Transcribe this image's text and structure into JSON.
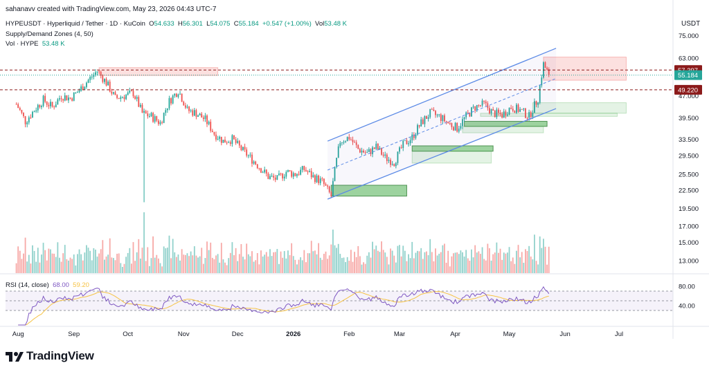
{
  "header": {
    "attribution": "sahanavv created with TradingView.com, May 23, 2026 04:43 UTC-7"
  },
  "symbol_line": {
    "title": "HYPEUSDT · Hyperliquid / Tether · 1D · KuCoin",
    "o_label": "O",
    "o_value": "54.633",
    "h_label": "H",
    "h_value": "56.301",
    "l_label": "L",
    "l_value": "54.075",
    "c_label": "C",
    "c_value": "55.184",
    "chg": "+0.547 (+1.00%)",
    "vol_label": "Vol",
    "vol_value": "53.48 K"
  },
  "indicator_line": "Supply/Demand Zones (4, 50)",
  "volume_line": {
    "label": "Vol · HYPE",
    "value": "53.48 K"
  },
  "rsi_line": {
    "label": "RSI (14, close)",
    "v1": "68.00",
    "v2": "59.20"
  },
  "logo": {
    "text": "TradingView"
  },
  "colors": {
    "up": "#26a69a",
    "down": "#ef5350",
    "channel": "#5b8ae6",
    "level": "#8b1a1a",
    "rsi": "#7e57c2",
    "rsi_ma": "#f6c344"
  },
  "chart_data": {
    "type": "candlestick",
    "currency": "USDT",
    "price_axis": {
      "ticks": [
        "75.000",
        "63.000",
        "57.000",
        "47.000",
        "39.500",
        "33.500",
        "29.500",
        "25.500",
        "22.500",
        "19.500",
        "17.000",
        "15.000",
        "13.000"
      ],
      "ylim": [
        12,
        78
      ],
      "scale": "log"
    },
    "x_axis": {
      "labels": [
        "Aug",
        "Sep",
        "Oct",
        "Nov",
        "Dec",
        "2026",
        "Feb",
        "Mar",
        "Apr",
        "May",
        "Jun",
        "Jul"
      ]
    },
    "price_labels": [
      {
        "value": "57.397",
        "kind": "level"
      },
      {
        "value": "55.184",
        "kind": "last"
      },
      {
        "value": "49.220",
        "kind": "level"
      }
    ],
    "horizontal_levels": [
      57.397,
      49.22
    ],
    "last_price": 55.184,
    "rsi": {
      "ticks": [
        "80.00",
        "40.00"
      ],
      "upper_band": 70,
      "mid": 50,
      "lower_band": 30,
      "last": 68.0,
      "ma_last": 59.2
    },
    "ascending_channel": {
      "upper": [
        [
          "2026-01-20",
          33.0
        ],
        [
          "2026-05-27",
          68.0
        ]
      ],
      "lower": [
        [
          "2026-01-20",
          21.0
        ],
        [
          "2026-05-27",
          42.5
        ]
      ]
    },
    "supply_zones": [
      {
        "from": "2025-09-15",
        "to": "2025-11-20",
        "low": 55.0,
        "high": 58.5
      },
      {
        "from": "2026-05-20",
        "to": "2026-07-05",
        "low": 53.0,
        "high": 63.5
      }
    ],
    "demand_zones": [
      {
        "from": "2026-01-22",
        "to": "2026-03-05",
        "low": 21.5,
        "high": 23.4,
        "strong": true
      },
      {
        "from": "2026-03-08",
        "to": "2026-04-22",
        "low": 30.5,
        "high": 31.8,
        "strong": true
      },
      {
        "from": "2026-03-08",
        "to": "2026-04-21",
        "low": 27.8,
        "high": 30.5,
        "strong": false
      },
      {
        "from": "2026-04-06",
        "to": "2026-05-22",
        "low": 37.0,
        "high": 38.5,
        "strong": true
      },
      {
        "from": "2026-04-05",
        "to": "2026-05-20",
        "low": 35.2,
        "high": 37.0,
        "strong": false
      },
      {
        "from": "2026-05-14",
        "to": "2026-07-05",
        "low": 41.0,
        "high": 44.5,
        "strong": false
      },
      {
        "from": "2026-04-15",
        "to": "2026-06-30",
        "low": 40.0,
        "high": 41.0,
        "strong": false
      }
    ],
    "candles": [
      {
        "d": "2025-07-31",
        "c": 44.0
      },
      {
        "d": "2025-08-05",
        "c": 38.5
      },
      {
        "d": "2025-08-10",
        "c": 42.0
      },
      {
        "d": "2025-08-15",
        "c": 45.5
      },
      {
        "d": "2025-08-20",
        "c": 43.0
      },
      {
        "d": "2025-08-25",
        "c": 47.0
      },
      {
        "d": "2025-08-30",
        "c": 46.0
      },
      {
        "d": "2025-09-04",
        "c": 49.0
      },
      {
        "d": "2025-09-09",
        "c": 53.0
      },
      {
        "d": "2025-09-14",
        "c": 57.0
      },
      {
        "d": "2025-09-19",
        "c": 52.0
      },
      {
        "d": "2025-09-24",
        "c": 46.0
      },
      {
        "d": "2025-09-29",
        "c": 47.0
      },
      {
        "d": "2025-10-04",
        "c": 48.0
      },
      {
        "d": "2025-10-09",
        "c": 41.0
      },
      {
        "d": "2025-10-14",
        "c": 40.0
      },
      {
        "d": "2025-10-19",
        "c": 38.0
      },
      {
        "d": "2025-10-24",
        "c": 45.0
      },
      {
        "d": "2025-10-29",
        "c": 49.0
      },
      {
        "d": "2025-11-03",
        "c": 42.0
      },
      {
        "d": "2025-11-08",
        "c": 41.0
      },
      {
        "d": "2025-11-13",
        "c": 39.0
      },
      {
        "d": "2025-11-18",
        "c": 35.0
      },
      {
        "d": "2025-11-23",
        "c": 33.0
      },
      {
        "d": "2025-11-28",
        "c": 33.5
      },
      {
        "d": "2025-12-03",
        "c": 31.0
      },
      {
        "d": "2025-12-08",
        "c": 29.0
      },
      {
        "d": "2025-12-13",
        "c": 27.0
      },
      {
        "d": "2025-12-18",
        "c": 25.0
      },
      {
        "d": "2025-12-23",
        "c": 24.5
      },
      {
        "d": "2025-12-28",
        "c": 26.0
      },
      {
        "d": "2026-01-02",
        "c": 25.5
      },
      {
        "d": "2026-01-07",
        "c": 26.5
      },
      {
        "d": "2026-01-12",
        "c": 25.0
      },
      {
        "d": "2026-01-17",
        "c": 24.0
      },
      {
        "d": "2026-01-22",
        "c": 21.5
      },
      {
        "d": "2026-01-27",
        "c": 33.0
      },
      {
        "d": "2026-02-01",
        "c": 34.0
      },
      {
        "d": "2026-02-06",
        "c": 31.0
      },
      {
        "d": "2026-02-11",
        "c": 30.0
      },
      {
        "d": "2026-02-16",
        "c": 31.5
      },
      {
        "d": "2026-02-21",
        "c": 29.0
      },
      {
        "d": "2026-02-26",
        "c": 28.0
      },
      {
        "d": "2026-03-03",
        "c": 32.0
      },
      {
        "d": "2026-03-08",
        "c": 34.0
      },
      {
        "d": "2026-03-13",
        "c": 38.0
      },
      {
        "d": "2026-03-18",
        "c": 41.0
      },
      {
        "d": "2026-03-23",
        "c": 40.0
      },
      {
        "d": "2026-03-28",
        "c": 38.0
      },
      {
        "d": "2026-04-02",
        "c": 36.5
      },
      {
        "d": "2026-04-07",
        "c": 40.0
      },
      {
        "d": "2026-04-12",
        "c": 43.0
      },
      {
        "d": "2026-04-17",
        "c": 44.0
      },
      {
        "d": "2026-04-22",
        "c": 41.0
      },
      {
        "d": "2026-04-27",
        "c": 40.5
      },
      {
        "d": "2026-05-02",
        "c": 43.0
      },
      {
        "d": "2026-05-07",
        "c": 42.0
      },
      {
        "d": "2026-05-12",
        "c": 40.0
      },
      {
        "d": "2026-05-17",
        "c": 46.0
      },
      {
        "d": "2026-05-20",
        "c": 60.0
      },
      {
        "d": "2026-05-23",
        "c": 55.184
      }
    ]
  }
}
